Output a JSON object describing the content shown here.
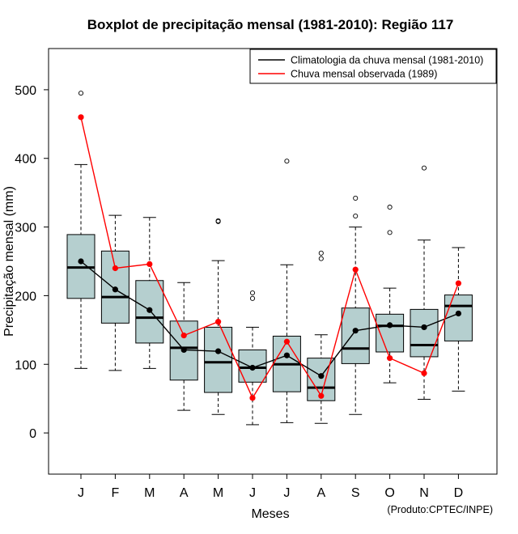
{
  "chart_data": {
    "type": "boxplot",
    "title": "Boxplot de precipitação mensal (1981-2010): Região 117",
    "xlabel": "Meses",
    "ylabel": "Precipitação mensal (mm)",
    "credit": "(Produto:CPTEC/INPE)",
    "ylim": [
      -60,
      560
    ],
    "yticks": [
      0,
      100,
      200,
      300,
      400,
      500
    ],
    "categories": [
      "J",
      "F",
      "M",
      "A",
      "M",
      "J",
      "J",
      "A",
      "S",
      "O",
      "N",
      "D"
    ],
    "boxes": [
      {
        "min": 94,
        "q1": 196,
        "median": 241,
        "q3": 289,
        "max": 391,
        "outliers": [
          495
        ]
      },
      {
        "min": 91,
        "q1": 160,
        "median": 198,
        "q3": 265,
        "max": 317,
        "outliers": []
      },
      {
        "min": 94,
        "q1": 131,
        "median": 168,
        "q3": 222,
        "max": 314,
        "outliers": []
      },
      {
        "min": 33,
        "q1": 77,
        "median": 124,
        "q3": 163,
        "max": 219,
        "outliers": []
      },
      {
        "min": 27,
        "q1": 59,
        "median": 103,
        "q3": 154,
        "max": 251,
        "outliers": [
          309,
          308
        ]
      },
      {
        "min": 12,
        "q1": 74,
        "median": 95,
        "q3": 121,
        "max": 154,
        "outliers": [
          204,
          196
        ]
      },
      {
        "min": 15,
        "q1": 60,
        "median": 100,
        "q3": 141,
        "max": 245,
        "outliers": [
          396
        ]
      },
      {
        "min": 14,
        "q1": 47,
        "median": 66,
        "q3": 109,
        "max": 143,
        "outliers": [
          262,
          254
        ]
      },
      {
        "min": 27,
        "q1": 101,
        "median": 123,
        "q3": 182,
        "max": 300,
        "outliers": [
          342,
          316
        ]
      },
      {
        "min": 73,
        "q1": 118,
        "median": 156,
        "q3": 173,
        "max": 211,
        "outliers": [
          329,
          292
        ]
      },
      {
        "min": 49,
        "q1": 111,
        "median": 128,
        "q3": 180,
        "max": 281,
        "outliers": [
          386
        ]
      },
      {
        "min": 61,
        "q1": 134,
        "median": 185,
        "q3": 201,
        "max": 270,
        "outliers": []
      }
    ],
    "series": [
      {
        "name": "Climatologia da chuva mensal (1981-2010)",
        "color": "#000000",
        "values": [
          250,
          209,
          179,
          121,
          119,
          95,
          113,
          83,
          149,
          157,
          154,
          174
        ]
      },
      {
        "name": "Chuva mensal observada (1989)",
        "color": "#ff0000",
        "values": [
          460,
          240,
          246,
          142,
          162,
          51,
          133,
          54,
          238,
          109,
          87,
          218
        ]
      }
    ],
    "box_fill": "#b5cfcf",
    "legend_position": "top-right"
  }
}
